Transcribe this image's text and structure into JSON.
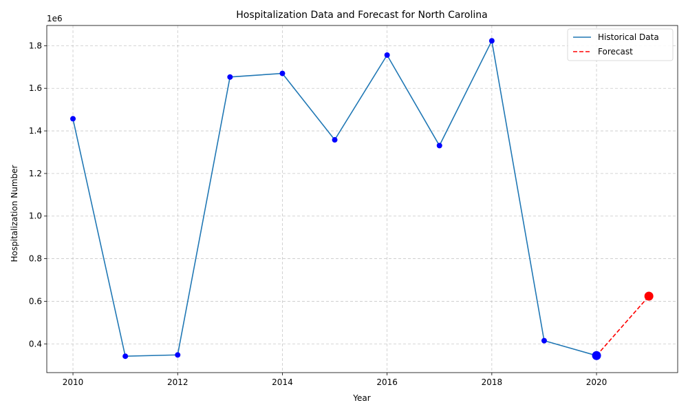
{
  "chart_data": {
    "type": "line",
    "title": "Hospitalization Data and Forecast for North Carolina",
    "xlabel": "Year",
    "ylabel": "Hospitalization Number",
    "y_offset_label": "1e6",
    "xlim": [
      2009.5,
      2021.55
    ],
    "ylim": [
      265000,
      1895000
    ],
    "x_ticks": [
      2010,
      2012,
      2014,
      2016,
      2018,
      2020
    ],
    "y_ticks": [
      400000,
      600000,
      800000,
      1000000,
      1200000,
      1400000,
      1600000,
      1800000
    ],
    "y_tick_labels": [
      "0.4",
      "0.6",
      "0.8",
      "1.0",
      "1.2",
      "1.4",
      "1.6",
      "1.8"
    ],
    "grid": true,
    "legend_position": "top-right",
    "series": [
      {
        "name": "Historical Data",
        "style": "solid",
        "color": "#1f77b4",
        "marker_color": "#0000ff",
        "x": [
          2010,
          2011,
          2012,
          2013,
          2014,
          2015,
          2016,
          2017,
          2018,
          2019,
          2020
        ],
        "values": [
          1457000,
          342000,
          348000,
          1653000,
          1670000,
          1358000,
          1756000,
          1331000,
          1823000,
          415000,
          345000
        ]
      },
      {
        "name": "Forecast",
        "style": "dashed",
        "color": "#ff0000",
        "marker_color": "#ff0000",
        "x": [
          2020,
          2021
        ],
        "values": [
          345000,
          624000
        ]
      }
    ]
  }
}
